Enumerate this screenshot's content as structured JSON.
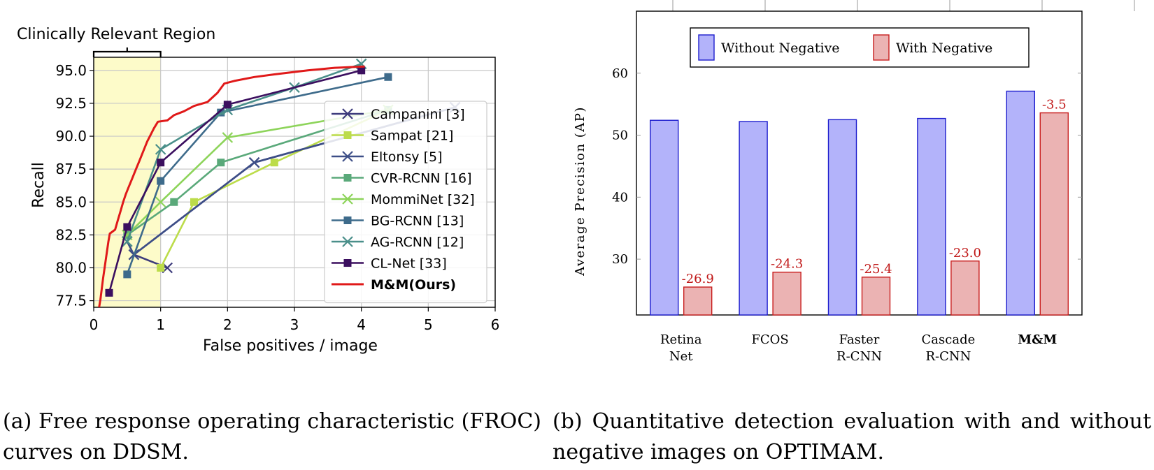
{
  "chart_data": [
    {
      "type": "line",
      "xlabel": "False positives / image",
      "ylabel": "Recall",
      "xlim": [
        0,
        6
      ],
      "ylim": [
        77,
        96
      ],
      "xticks": [
        0,
        1,
        2,
        3,
        4,
        5,
        6
      ],
      "xtick_labels": [
        "0",
        "1",
        "2",
        "3",
        "4",
        "5",
        "6"
      ],
      "yticks": [
        77.5,
        80.0,
        82.5,
        85.0,
        87.5,
        90.0,
        92.5,
        95.0
      ],
      "ytick_labels": [
        "77.5",
        "80.0",
        "82.5",
        "85.0",
        "87.5",
        "90.0",
        "92.5",
        "95.0"
      ],
      "grid": true,
      "legend_position": "right",
      "annotation": {
        "text": "Clinically Relevant Region",
        "x_range": [
          0,
          1
        ]
      },
      "series": [
        {
          "name": "Campanini  [3]",
          "color": "#3d3b7c",
          "marker": "x",
          "points": [
            [
              1.1,
              80.0
            ],
            [
              0.6,
              81.0
            ],
            [
              2.4,
              88.0
            ],
            [
              5.4,
              92.2
            ]
          ]
        },
        {
          "name": "Sampat [21]",
          "color": "#bcdc4a",
          "marker": "square",
          "points": [
            [
              1.0,
              80.0
            ],
            [
              1.5,
              85.0
            ],
            [
              2.7,
              88.0
            ],
            [
              4.4,
              92.0
            ]
          ]
        },
        {
          "name": "Eltonsy [5]",
          "color": "#3d4e87",
          "marker": "x",
          "points": [
            [
              0.5,
              82.0
            ],
            [
              0.6,
              81.0
            ],
            [
              2.4,
              88.0
            ],
            [
              5.4,
              92.2
            ]
          ]
        },
        {
          "name": "CVR-RCNN [16]",
          "color": "#5aa97a",
          "marker": "square",
          "points": [
            [
              0.5,
              82.5
            ],
            [
              1.2,
              85.0
            ],
            [
              1.9,
              88.0
            ],
            [
              4.4,
              92.0
            ]
          ]
        },
        {
          "name": "MommiNet [32]",
          "color": "#8dd45a",
          "marker": "x",
          "points": [
            [
              0.5,
              82.5
            ],
            [
              1.0,
              85.0
            ],
            [
              2.0,
              89.9
            ],
            [
              4.4,
              92.0
            ]
          ]
        },
        {
          "name": "BG-RCNN [13]",
          "color": "#3e6b8b",
          "marker": "square",
          "points": [
            [
              0.5,
              79.5
            ],
            [
              1.0,
              86.6
            ],
            [
              1.9,
              91.8
            ],
            [
              4.4,
              94.5
            ]
          ]
        },
        {
          "name": "AG-RCNN [12]",
          "color": "#4a8f8a",
          "marker": "x",
          "points": [
            [
              0.5,
              82.0
            ],
            [
              1.0,
              89.0
            ],
            [
              2.0,
              92.0
            ],
            [
              3.0,
              93.7
            ],
            [
              4.0,
              95.5
            ]
          ]
        },
        {
          "name": "CL-Net [33]",
          "color": "#3b0f5f",
          "marker": "square",
          "points": [
            [
              0.23,
              78.1
            ],
            [
              0.5,
              83.1
            ],
            [
              1.0,
              88.0
            ],
            [
              2.0,
              92.4
            ],
            [
              4.0,
              95.0
            ]
          ]
        },
        {
          "name": "M&M(Ours)",
          "color": "#e01919",
          "marker": "none",
          "bold": true,
          "points": [
            [
              0.08,
              77.0
            ],
            [
              0.1,
              77.6
            ],
            [
              0.12,
              78.4
            ],
            [
              0.14,
              79.2
            ],
            [
              0.16,
              79.9
            ],
            [
              0.18,
              80.6
            ],
            [
              0.2,
              81.3
            ],
            [
              0.22,
              82.0
            ],
            [
              0.24,
              82.6
            ],
            [
              0.32,
              82.9
            ],
            [
              0.36,
              83.6
            ],
            [
              0.4,
              84.3
            ],
            [
              0.44,
              85.0
            ],
            [
              0.48,
              85.6
            ],
            [
              0.52,
              86.1
            ],
            [
              0.56,
              86.6
            ],
            [
              0.6,
              87.1
            ],
            [
              0.64,
              87.6
            ],
            [
              0.68,
              88.1
            ],
            [
              0.72,
              88.6
            ],
            [
              0.76,
              89.1
            ],
            [
              0.8,
              89.6
            ],
            [
              0.85,
              90.1
            ],
            [
              0.9,
              90.6
            ],
            [
              0.96,
              91.1
            ],
            [
              1.1,
              91.2
            ],
            [
              1.2,
              91.6
            ],
            [
              1.35,
              91.9
            ],
            [
              1.5,
              92.3
            ],
            [
              1.7,
              92.6
            ],
            [
              1.85,
              93.3
            ],
            [
              1.95,
              94.0
            ],
            [
              2.1,
              94.2
            ],
            [
              2.4,
              94.5
            ],
            [
              2.7,
              94.7
            ],
            [
              3.2,
              95.0
            ],
            [
              3.6,
              95.2
            ],
            [
              4.05,
              95.3
            ]
          ]
        }
      ]
    },
    {
      "type": "bar",
      "ylabel": "Average Precision (AP)",
      "ylim": [
        21,
        70
      ],
      "yticks": [
        30,
        40,
        50,
        60
      ],
      "ytick_labels": [
        "30",
        "40",
        "50",
        "60"
      ],
      "grid": false,
      "legend_position": "top-center",
      "categories": [
        [
          "Retina",
          "Net"
        ],
        [
          "FCOS"
        ],
        [
          "Faster",
          "R-CNN"
        ],
        [
          "Cascade",
          "R-CNN"
        ],
        [
          "M&M"
        ]
      ],
      "category_bold": [
        false,
        false,
        false,
        false,
        true
      ],
      "series": [
        {
          "name": "Without Negative",
          "fill": "#b3b3fa",
          "stroke": "#1c1ccd",
          "values": [
            52.4,
            52.2,
            52.5,
            52.7,
            57.1
          ]
        },
        {
          "name": "With Negative",
          "fill": "#ebb3b3",
          "stroke": "#c81e1e",
          "values": [
            25.5,
            27.9,
            27.1,
            29.7,
            53.6
          ]
        }
      ],
      "data_labels": [
        "-26.9",
        "-24.3",
        "-25.4",
        "-23.0",
        "-3.5"
      ],
      "data_label_color": "#c01818"
    }
  ],
  "captions": {
    "a": "(a)  Free  response  operating  characteristic (FROC) curves on DDSM.",
    "b": "(b)  Quantitative  detection  evaluation  with  and without negative images on OPTIMAM."
  }
}
